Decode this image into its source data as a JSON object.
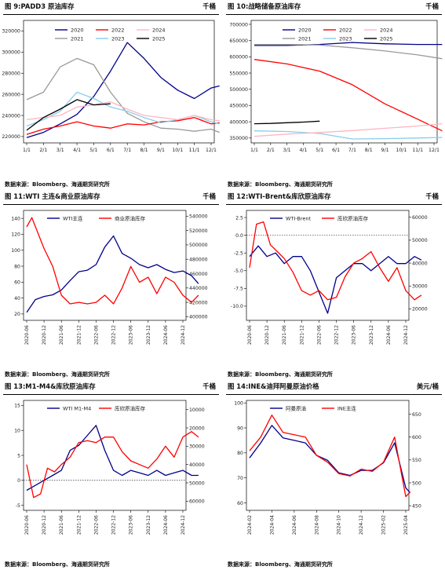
{
  "panels": [
    {
      "title": "图 9:PADD3 原油库存",
      "unit": "千桶",
      "source": "数据来源：Bloomberg、海通期货研究所",
      "chart_data": {
        "type": "line",
        "x_ticks": [
          "1/1",
          "2/1",
          "3/1",
          "4/1",
          "5/1",
          "6/1",
          "7/1",
          "8/1",
          "9/1",
          "10/1",
          "11/1",
          "12/1"
        ],
        "y_ticks": [
          "220000",
          "240000",
          "260000",
          "280000",
          "300000",
          "320000"
        ],
        "ylim": [
          214000,
          330000
        ],
        "legend": [
          "2020",
          "2022",
          "2024",
          "2021",
          "2023",
          "2025"
        ],
        "series": [
          {
            "name": "2020",
            "color": "#00008b",
            "x": [
              0,
              1,
              2,
              3,
              4,
              5,
              6,
              7,
              8,
              9,
              10,
              11,
              11.5
            ],
            "values": [
              219000,
              224000,
              232000,
              241000,
              258000,
              282000,
              309000,
              294000,
              276000,
              264000,
              256000,
              266000,
              268000
            ]
          },
          {
            "name": "2021",
            "color": "#999999",
            "x": [
              0,
              1,
              2,
              3,
              4,
              5,
              6,
              7,
              8,
              9,
              10,
              11,
              11.5
            ],
            "values": [
              255000,
              262000,
              286000,
              294000,
              288000,
              262000,
              242000,
              234000,
              228000,
              227000,
              225000,
              227000,
              224000
            ]
          },
          {
            "name": "2022",
            "color": "#ff0000",
            "x": [
              0,
              1,
              2,
              3,
              4,
              5,
              6,
              7,
              8,
              9,
              10,
              11,
              11.5
            ],
            "values": [
              222000,
              227000,
              230000,
              234000,
              230000,
              228000,
              232000,
              231000,
              234000,
              235000,
              238000,
              232000,
              233000
            ]
          },
          {
            "name": "2023",
            "color": "#87ceeb",
            "x": [
              0,
              1,
              2,
              3,
              4,
              5,
              6,
              7,
              8,
              9,
              10,
              11,
              11.5
            ],
            "values": [
              230000,
              236000,
              244000,
              262000,
              256000,
              248000,
              244000,
              238000,
              233000,
              236000,
              240000,
              234000,
              232000
            ]
          },
          {
            "name": "2024",
            "color": "#ffb6c1",
            "x": [
              0,
              1,
              2,
              3,
              4,
              5,
              6,
              7,
              8,
              9,
              10,
              11,
              11.5
            ],
            "values": [
              236000,
              238000,
              240000,
              248000,
              250000,
              253000,
              246000,
              240000,
              238000,
              236000,
              240000,
              236000,
              235000
            ]
          },
          {
            "name": "2025",
            "color": "#000000",
            "x": [
              0,
              1,
              2,
              3,
              4,
              5
            ],
            "values": [
              226000,
              238000,
              246000,
              255000,
              250000,
              251000
            ]
          }
        ]
      }
    },
    {
      "title": "图 10:战略储备原油库存",
      "unit": "千桶",
      "source": "数据来源：Bloomberg、海通期货研究所",
      "chart_data": {
        "type": "line",
        "x_ticks": [
          "1/1",
          "2/1",
          "3/1",
          "4/1",
          "5/1",
          "6/1",
          "7/1",
          "8/1",
          "9/1",
          "10/1",
          "11/1",
          "12/1"
        ],
        "y_ticks": [
          "350000",
          "400000",
          "450000",
          "500000",
          "550000",
          "600000",
          "650000",
          "700000"
        ],
        "ylim": [
          335000,
          712000
        ],
        "legend": [
          "2020",
          "2022",
          "2024",
          "2021",
          "2023",
          "2025"
        ],
        "series": [
          {
            "name": "2020",
            "color": "#00008b",
            "x": [
              0,
              2,
              4,
              6,
              8,
              10,
              11.5
            ],
            "values": [
              635000,
              635000,
              638000,
              644000,
              640000,
              638000,
              638000
            ]
          },
          {
            "name": "2021",
            "color": "#999999",
            "x": [
              0,
              2,
              4,
              6,
              8,
              10,
              11.5
            ],
            "values": [
              638000,
              638000,
              636000,
              628000,
              618000,
              606000,
              594000
            ]
          },
          {
            "name": "2022",
            "color": "#ff0000",
            "x": [
              0,
              2,
              4,
              6,
              8,
              10,
              11.5
            ],
            "values": [
              592000,
              578000,
              556000,
              514000,
              455000,
              408000,
              372000
            ]
          },
          {
            "name": "2023",
            "color": "#87ceeb",
            "x": [
              0,
              2,
              4,
              6,
              8,
              10,
              11.5
            ],
            "values": [
              372000,
              370000,
              364000,
              347000,
              348000,
              350000,
              352000
            ]
          },
          {
            "name": "2024",
            "color": "#ffb6c1",
            "x": [
              0,
              2,
              4,
              6,
              8,
              10,
              11.5
            ],
            "values": [
              355000,
              362000,
              367000,
              373000,
              380000,
              387000,
              394000
            ]
          },
          {
            "name": "2025",
            "color": "#000000",
            "x": [
              0,
              1,
              2,
              3,
              4
            ],
            "values": [
              394000,
              395000,
              397000,
              399000,
              402000
            ]
          }
        ]
      }
    },
    {
      "title": "图 11:WTI 主连&商业原油库存",
      "unit": "千桶",
      "source": "数据来源：Bloomberg、海通期货研究所",
      "chart_data": {
        "type": "line",
        "x_ticks": [
          "2020-06",
          "2020-12",
          "2021-06",
          "2021-12",
          "2022-06",
          "2022-12",
          "2023-06",
          "2023-12",
          "2024-06",
          "2024-12"
        ],
        "y_ticks": [
          "20",
          "40",
          "60",
          "80",
          "100",
          "120",
          "140"
        ],
        "ylim": [
          12,
          150
        ],
        "y2_ticks": [
          "400000",
          "420000",
          "440000",
          "460000",
          "480000",
          "500000",
          "520000",
          "540000"
        ],
        "y2lim": [
          395000,
          548000
        ],
        "legend": [
          "WTI主连",
          "商业原油库存"
        ],
        "series": [
          {
            "name": "WTI主连",
            "axis": "left",
            "color": "#00008b",
            "x": [
              0,
              0.5,
              1,
              1.5,
              2,
              2.5,
              3,
              3.5,
              4,
              4.5,
              5,
              5.5,
              6,
              6.5,
              7,
              7.5,
              8,
              8.5,
              9,
              9.5,
              9.9
            ],
            "values": [
              22,
              38,
              42,
              44,
              50,
              62,
              73,
              75,
              82,
              104,
              118,
              96,
              90,
              82,
              78,
              82,
              76,
              72,
              74,
              68,
              58
            ]
          },
          {
            "name": "商业原油库存",
            "axis": "right",
            "color": "#ff0000",
            "x": [
              0,
              0.3,
              1,
              1.5,
              2,
              2.5,
              3,
              3.5,
              4,
              4.5,
              5,
              5.5,
              6,
              6.5,
              7,
              7.5,
              8,
              8.5,
              9,
              9.5,
              9.9
            ],
            "values": [
              525000,
              538000,
              495000,
              470000,
              430000,
              418000,
              420000,
              418000,
              420000,
              430000,
              418000,
              440000,
              470000,
              448000,
              455000,
              432000,
              455000,
              448000,
              430000,
              420000,
              430000
            ]
          }
        ]
      }
    },
    {
      "title": "图 12:WTI-Brent&库欣原油库存",
      "unit": "千桶",
      "source": "数据来源：Bloomberg、海通期货研究所",
      "chart_data": {
        "type": "line",
        "x_ticks": [
          "2020-06",
          "2020-12",
          "2021-06",
          "2021-12",
          "2022-06",
          "2022-12",
          "2023-06",
          "2023-12",
          "2024-06",
          "2024-12"
        ],
        "y_ticks": [
          "-10.0",
          "-7.5",
          "-5.0",
          "-2.5",
          "0.0",
          "2.5"
        ],
        "ylim": [
          -12,
          3.5
        ],
        "y2_ticks": [
          "20000",
          "30000",
          "40000",
          "50000",
          "60000"
        ],
        "y2lim": [
          15000,
          63000
        ],
        "legend": [
          "WTI-Brent",
          "库欣原油库存"
        ],
        "series": [
          {
            "name": "WTI-Brent",
            "axis": "left",
            "color": "#00008b",
            "x": [
              0,
              0.5,
              1,
              1.5,
              2,
              2.5,
              3,
              3.5,
              4,
              4.5,
              5,
              5.5,
              6,
              6.5,
              7,
              7.5,
              8,
              8.5,
              9,
              9.5,
              9.9
            ],
            "values": [
              -3,
              -1.5,
              -3,
              -2.5,
              -4,
              -3,
              -3,
              -5,
              -8,
              -11,
              -6,
              -5,
              -4,
              -4,
              -5,
              -4,
              -3,
              -4,
              -4,
              -3,
              -3.5
            ]
          },
          {
            "name": "库欣原油库存",
            "axis": "right",
            "color": "#ff0000",
            "x": [
              0,
              0.4,
              0.8,
              1.2,
              1.6,
              2,
              2.5,
              3,
              3.5,
              4,
              4.5,
              5,
              5.5,
              6,
              6.5,
              7,
              7.5,
              8,
              8.5,
              9,
              9.5,
              9.9
            ],
            "values": [
              38000,
              57000,
              58000,
              48000,
              45000,
              42000,
              36000,
              28000,
              26000,
              28000,
              24000,
              25000,
              34000,
              40000,
              42000,
              45000,
              38000,
              32000,
              38000,
              28000,
              24000,
              26000
            ]
          }
        ]
      }
    },
    {
      "title": "图 13:M1-M4&库欣原油库存",
      "unit": "千桶",
      "source": "数据来源：Bloomberg、海通期货研究所",
      "chart_data": {
        "type": "line",
        "x_ticks": [
          "2020-06",
          "2020-12",
          "2021-06",
          "2021-12",
          "2022-06",
          "2022-12",
          "2023-06",
          "2023-12",
          "2024-06",
          "2024-12"
        ],
        "y_ticks": [
          "-5",
          "0",
          "5",
          "10",
          "15"
        ],
        "ylim": [
          -6,
          16
        ],
        "y2_ticks": [
          "10000",
          "20000",
          "30000",
          "40000",
          "50000",
          "60000"
        ],
        "y2_reversed": true,
        "y2lim": [
          5000,
          65000
        ],
        "legend": [
          "WTI M1-M4",
          "库欣原油库存"
        ],
        "series": [
          {
            "name": "WTI M1-M4",
            "axis": "left",
            "color": "#00008b",
            "x": [
              0,
              0.5,
              1,
              1.5,
              2,
              2.5,
              3,
              3.5,
              4,
              4.5,
              5,
              5.5,
              6,
              6.5,
              7,
              7.5,
              8,
              8.5,
              9,
              9.5,
              9.9
            ],
            "values": [
              -2,
              -1,
              0,
              1,
              2,
              6,
              7,
              9,
              11,
              6,
              2,
              1,
              2,
              1.5,
              1,
              2,
              1,
              1.5,
              2,
              1,
              1
            ]
          },
          {
            "name": "库欣原油库存",
            "axis": "right",
            "color": "#ff0000",
            "x": [
              0,
              0.4,
              0.8,
              1.2,
              1.6,
              2,
              2.5,
              3,
              3.5,
              4,
              4.5,
              5,
              5.5,
              6,
              6.5,
              7,
              7.5,
              8,
              8.5,
              9,
              9.5,
              9.9
            ],
            "values": [
              40000,
              58000,
              56000,
              42000,
              44000,
              40000,
              36000,
              28000,
              27000,
              28000,
              25000,
              25000,
              33000,
              38000,
              40000,
              42000,
              37000,
              30000,
              36000,
              25000,
              22000,
              25000
            ]
          }
        ]
      }
    },
    {
      "title": "图 14:INE&迪拜阿曼原油价格",
      "unit": "美元/桶",
      "source": "数据来源：Bloomberg、海通期货研究所",
      "chart_data": {
        "type": "line",
        "x_ticks": [
          "2024-02",
          "2024-04",
          "2024-06",
          "2024-08",
          "2024-10",
          "2024-12",
          "2025-02",
          "2025-04"
        ],
        "y_ticks": [
          "60",
          "70",
          "80",
          "90",
          "100"
        ],
        "ylim": [
          57,
          101
        ],
        "y2_ticks": [
          "450",
          "500",
          "550",
          "600",
          "650"
        ],
        "y2lim": [
          440,
          680
        ],
        "legend": [
          "阿曼原油",
          "INE主连"
        ],
        "series": [
          {
            "name": "阿曼原油",
            "axis": "left",
            "color": "#00008b",
            "x": [
              0,
              0.5,
              1,
              1.5,
              2,
              2.5,
              3,
              3.5,
              4,
              4.5,
              5,
              5.5,
              6,
              6.5,
              7,
              7.2
            ],
            "values": [
              78,
              84,
              91,
              86,
              85,
              84,
              79,
              77,
              72,
              71,
              73,
              73,
              76,
              84,
              66,
              64
            ]
          },
          {
            "name": "INE主连",
            "axis": "right",
            "color": "#ff0000",
            "x": [
              0,
              0.5,
              1,
              1.5,
              2,
              2.5,
              3,
              3.5,
              4,
              4.5,
              5,
              5.5,
              6,
              6.5,
              7,
              7.2
            ],
            "values": [
              570,
              600,
              648,
              610,
              605,
              600,
              560,
              545,
              520,
              515,
              530,
              525,
              545,
              600,
              470,
              480
            ]
          }
        ]
      }
    }
  ]
}
